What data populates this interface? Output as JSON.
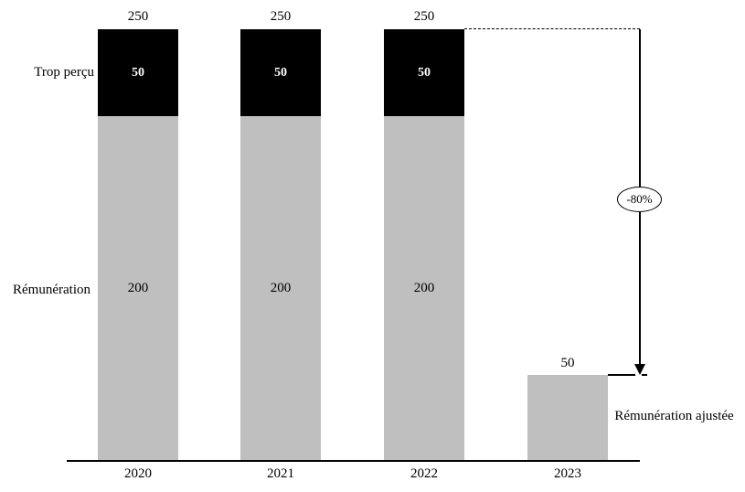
{
  "chart_data": {
    "type": "bar",
    "stacked": true,
    "title": "",
    "xlabel": "",
    "ylabel": "",
    "categories": [
      "2020",
      "2021",
      "2022",
      "2023"
    ],
    "series": [
      {
        "name": "Rémunération",
        "color": "#bfbfbf",
        "values": [
          200,
          200,
          200,
          null
        ]
      },
      {
        "name": "Trop perçu",
        "color": "#000000",
        "values": [
          50,
          50,
          50,
          null
        ]
      },
      {
        "name": "Rémunération ajustée",
        "color": "#bfbfbf",
        "values": [
          null,
          null,
          null,
          50
        ]
      }
    ],
    "totals": [
      250,
      250,
      250,
      50
    ],
    "ylim": [
      0,
      265
    ],
    "grid": false,
    "legend_position": "inline-left",
    "annotation": {
      "text": "-80%",
      "from_total": 250,
      "to_total": 50,
      "from_category": "2022",
      "to_category": "2023"
    }
  }
}
